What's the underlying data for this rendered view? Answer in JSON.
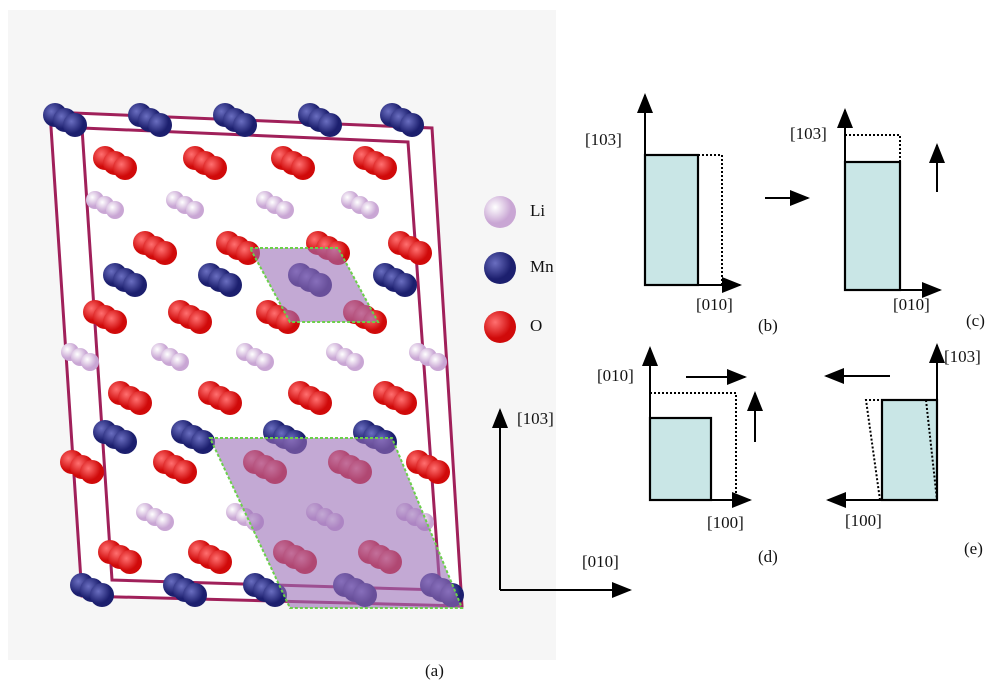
{
  "panel_a": {
    "label": "(a)",
    "legend": [
      "Li",
      "Mn",
      "O"
    ],
    "axis_y": "[103]",
    "axis_x": "[010]"
  },
  "panel_b": {
    "label": "(b)",
    "axis_y": "[103]",
    "axis_x": "[010]"
  },
  "panel_c": {
    "label": "(c)",
    "axis_y": "[103]",
    "axis_x": "[010]"
  },
  "panel_d": {
    "label": "(d)",
    "axis_y": "[010]",
    "axis_x": "[100]"
  },
  "panel_e": {
    "label": "(e)",
    "axis_y": "[103]",
    "axis_x": "[100]"
  }
}
